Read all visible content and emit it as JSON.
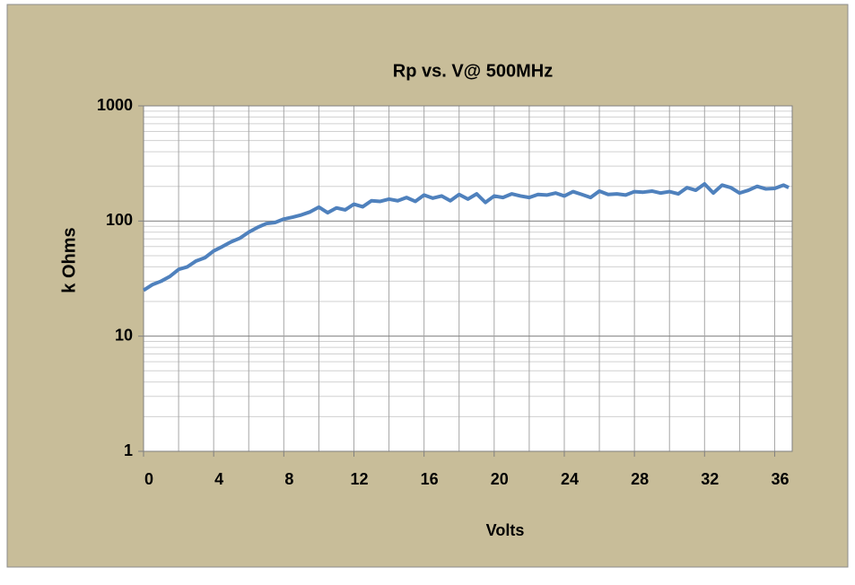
{
  "chart_data": {
    "type": "line",
    "title": "Rp vs. V@ 500MHz",
    "xlabel": "Volts",
    "ylabel": "k Ohms",
    "x": [
      0,
      0.5,
      1,
      1.5,
      2,
      2.5,
      3,
      3.5,
      4,
      4.5,
      5,
      5.5,
      6,
      6.5,
      7,
      7.5,
      8,
      8.5,
      9,
      9.5,
      10,
      10.5,
      11,
      11.5,
      12,
      12.5,
      13,
      13.5,
      14,
      14.5,
      15,
      15.5,
      16,
      16.5,
      17,
      17.5,
      18,
      18.5,
      19,
      19.5,
      20,
      20.5,
      21,
      21.5,
      22,
      22.5,
      23,
      23.5,
      24,
      24.5,
      25,
      25.5,
      26,
      26.5,
      27,
      27.5,
      28,
      28.5,
      29,
      29.5,
      30,
      30.5,
      31,
      31.5,
      32,
      32.5,
      33,
      33.5,
      34,
      34.5,
      35,
      35.5,
      36,
      36.5,
      36.8
    ],
    "series": [
      {
        "name": "Rp",
        "color": "#4f81bd",
        "values": [
          25,
          28,
          30,
          33,
          38,
          40,
          45,
          48,
          55,
          60,
          66,
          71,
          80,
          88,
          95,
          97,
          104,
          108,
          113,
          120,
          132,
          118,
          130,
          125,
          140,
          133,
          150,
          148,
          155,
          150,
          160,
          148,
          168,
          158,
          165,
          150,
          170,
          155,
          172,
          145,
          165,
          160,
          172,
          165,
          160,
          170,
          168,
          175,
          165,
          180,
          170,
          160,
          182,
          170,
          172,
          168,
          180,
          178,
          182,
          175,
          180,
          172,
          195,
          185,
          210,
          175,
          205,
          195,
          175,
          185,
          200,
          190,
          192,
          205,
          195
        ]
      }
    ],
    "xlim": [
      0,
      37
    ],
    "xticks": [
      0,
      4,
      8,
      12,
      16,
      20,
      24,
      28,
      32,
      36
    ],
    "ylim": [
      1,
      1000
    ],
    "yticks": [
      1,
      10,
      100,
      1000
    ],
    "ylog": true,
    "grid": true,
    "minor_grid": true
  }
}
